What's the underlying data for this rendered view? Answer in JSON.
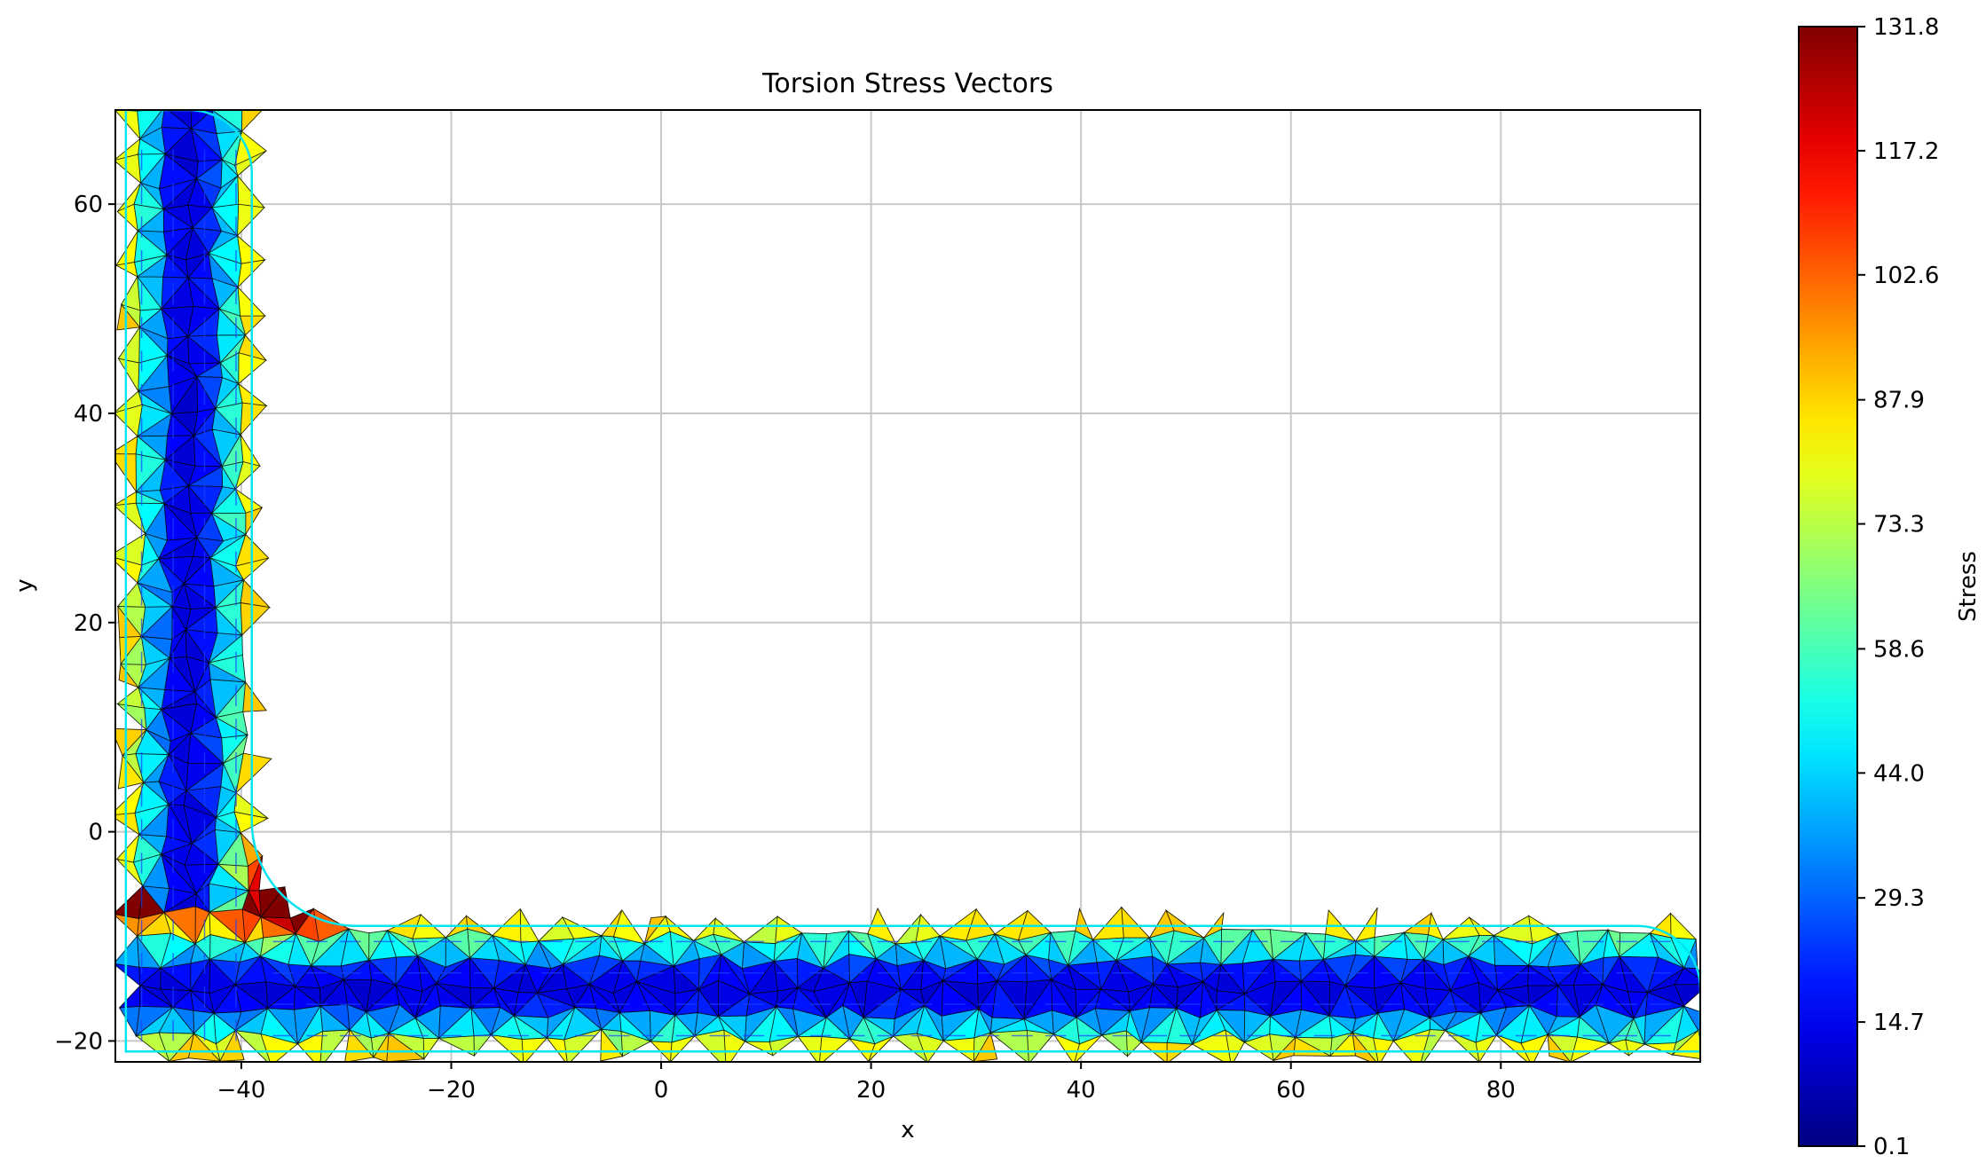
{
  "chart_data": {
    "type": "heatmap",
    "title": "Torsion Stress Vectors",
    "xlabel": "x",
    "ylabel": "y",
    "xlim": [
      -52,
      99
    ],
    "ylim": [
      -22,
      69
    ],
    "xticks": [
      -40,
      -20,
      0,
      20,
      40,
      60,
      80
    ],
    "yticks": [
      -20,
      0,
      20,
      40,
      60
    ],
    "xtick_labels": [
      "−40",
      "−20",
      "0",
      "20",
      "40",
      "60",
      "80"
    ],
    "ytick_labels": [
      "−20",
      "0",
      "20",
      "40",
      "60"
    ],
    "grid": true,
    "colormap": "jet",
    "colorbar": {
      "label": "Stress",
      "min": 0.1,
      "max": 131.8,
      "ticks": [
        0.1,
        14.7,
        29.3,
        44.0,
        58.6,
        73.3,
        87.9,
        102.6,
        117.2,
        131.8
      ],
      "tick_labels": [
        "0.1",
        "14.7",
        "29.3",
        "44.0",
        "58.6",
        "73.3",
        "87.9",
        "102.6",
        "117.2",
        "131.8"
      ]
    },
    "geometry": {
      "shape": "L-angle section",
      "vertical_leg": {
        "x": [
          -51,
          -39
        ],
        "y": [
          -21,
          69
        ]
      },
      "horizontal_leg": {
        "x": [
          -51,
          99
        ],
        "y": [
          -21,
          -9
        ]
      },
      "fillet_center": [
        -29,
        1
      ],
      "fillet_radius": 10,
      "tip_radius": 6
    },
    "stress_summary": {
      "peak_location": [
        -35,
        -6
      ],
      "peak_value": 131.8,
      "outer_edge_value": 90,
      "inner_edge_value": 85,
      "centerline_value": 10
    }
  }
}
